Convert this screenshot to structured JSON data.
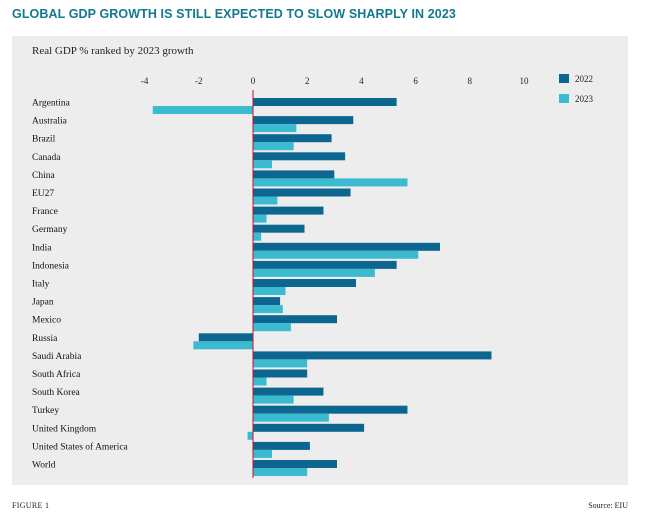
{
  "title": "GLOBAL GDP GROWTH IS STILL EXPECTED TO SLOW SHARPLY IN 2023",
  "footer": {
    "figure": "FIGURE 1",
    "source": "Source: EIU"
  },
  "colors": {
    "title": "#12798f",
    "series_2022": "#0d6690",
    "series_2023": "#3cbad0",
    "zero_line": "#c8102e",
    "panel": "#ededed"
  },
  "chart_data": {
    "type": "bar",
    "orientation": "horizontal",
    "title": "Real GDP % ranked by 2023 growth",
    "xlim": [
      -4,
      10
    ],
    "xticks": [
      -4,
      -2,
      0,
      2,
      4,
      6,
      8,
      10
    ],
    "grid": false,
    "legend_position": "top-right",
    "categories": [
      "Argentina",
      "Australia",
      "Brazil",
      "Canada",
      "China",
      "EU27",
      "France",
      "Germany",
      "India",
      "Indonesia",
      "Italy",
      "Japan",
      "Mexico",
      "Russia",
      "Saudi Arabia",
      "South Africa",
      "South Korea",
      "Turkey",
      "United Kingdom",
      "United States of America",
      "World"
    ],
    "series": [
      {
        "name": "2022",
        "values": [
          5.3,
          3.7,
          2.9,
          3.4,
          3.0,
          3.6,
          2.6,
          1.9,
          6.9,
          5.3,
          3.8,
          1.0,
          3.1,
          -2.0,
          8.8,
          2.0,
          2.6,
          5.7,
          4.1,
          2.1,
          3.1
        ]
      },
      {
        "name": "2023",
        "values": [
          -3.7,
          1.6,
          1.5,
          0.7,
          5.7,
          0.9,
          0.5,
          0.3,
          6.1,
          4.5,
          1.2,
          1.1,
          1.4,
          -2.2,
          2.0,
          0.5,
          1.5,
          2.8,
          -0.2,
          0.7,
          2.0
        ]
      }
    ]
  }
}
